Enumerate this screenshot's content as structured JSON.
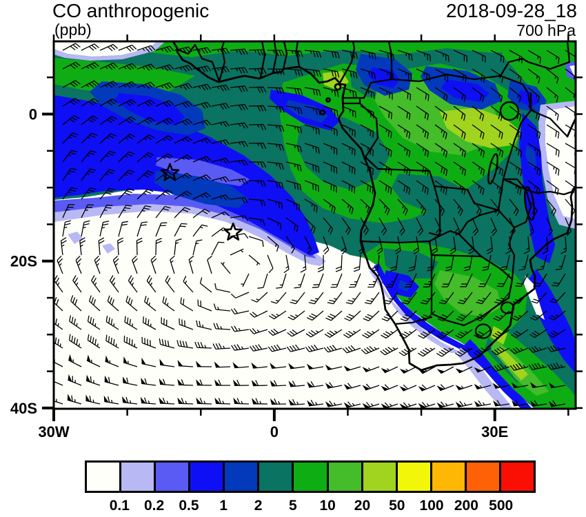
{
  "header": {
    "title": "CO anthropogenic",
    "units": "(ppb)",
    "datetime": "2018-09-28_18",
    "level": "700 hPa"
  },
  "axes": {
    "x_labeled_ticks": [
      {
        "label": "30W",
        "lon": -30
      },
      {
        "label": "0",
        "lon": 0
      },
      {
        "label": "30E",
        "lon": 30
      }
    ],
    "y_labeled_ticks": [
      {
        "label": "0",
        "lat": 0
      },
      {
        "label": "20S",
        "lat": -20
      },
      {
        "label": "40S",
        "lat": -40
      }
    ],
    "x_minor_step_deg": 10,
    "y_minor_step_deg": 5
  },
  "chart_data": {
    "type": "heatmap",
    "subtype": "filled-contour geographic map with wind barbs",
    "title": "CO anthropogenic",
    "units": "ppb",
    "datetime": "2018-09-28_18",
    "pressure_level": "700 hPa",
    "extent": {
      "lon_min": -30,
      "lon_max": 41,
      "lat_min": -40.1,
      "lat_max": 9.9
    },
    "palette_levels": [
      0.1,
      0.2,
      0.5,
      1,
      2,
      5,
      10,
      20,
      50,
      100,
      200,
      500
    ],
    "palette_colors": [
      "#FFFFFA",
      "#B8B8F4",
      "#5A5AF5",
      "#0F0FF5",
      "#0339BB",
      "#0A7361",
      "#0FAD14",
      "#45BC2A",
      "#A0D41E",
      "#F2F70A",
      "#FFB705",
      "#FF6106",
      "#FA0F05"
    ],
    "wind_barbs": {
      "units": "knots",
      "pattern": "subtropical anticyclone over the South Atlantic, easterlies over the tropical continent, strong westerlies (40-65 kt) south of about 35S"
    },
    "markers": [
      {
        "shape": "star",
        "lon": -14.2,
        "lat": -8.0
      },
      {
        "shape": "star",
        "lon": -5.6,
        "lat": -16.1
      }
    ],
    "regions": [
      {
        "area": "central Africa (Congo basin, Angola, Zambia, Zimbabwe)",
        "value_ppb": "2-20 with local maxima 20-50"
      },
      {
        "area": "burning outflow over tropical Atlantic 0-15S",
        "value_ppb": "0.5-2"
      },
      {
        "area": "South Atlantic south of ~18S, interior Namibia / western South Africa",
        "value_ppb": "<0.1"
      },
      {
        "area": "plume off the southeast coast toward bottom-right corner",
        "value_ppb": "5-50"
      },
      {
        "area": "Indian Ocean hole along east coast 5S-25S",
        "value_ppb": "<0.1"
      }
    ]
  }
}
